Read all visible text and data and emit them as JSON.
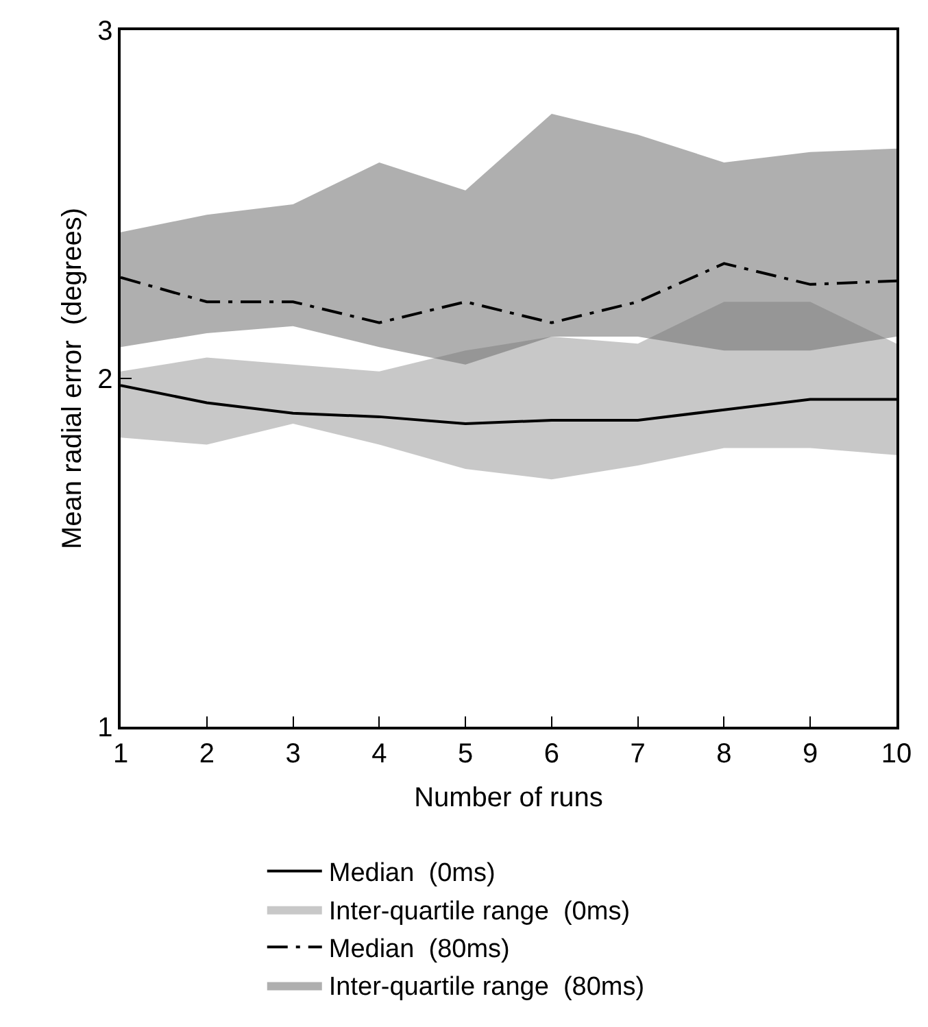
{
  "chart_data": {
    "type": "line",
    "xlabel": "Number of runs",
    "ylabel": "Mean radial error  (degrees)",
    "x": [
      1,
      2,
      3,
      4,
      5,
      6,
      7,
      8,
      9,
      10
    ],
    "xlim": [
      1,
      10
    ],
    "xticks": [
      1,
      2,
      3,
      4,
      5,
      6,
      7,
      8,
      9,
      10
    ],
    "ylim": [
      1,
      3
    ],
    "yticks": [
      1,
      2,
      3
    ],
    "grid": false,
    "legend": "bottom",
    "marker": "none",
    "series": [
      {
        "name": "Median  (0ms)",
        "color": "#000000",
        "line_style": "solid",
        "values": [
          1.98,
          1.93,
          1.9,
          1.89,
          1.87,
          1.88,
          1.88,
          1.91,
          1.94,
          1.94
        ]
      },
      {
        "name": "Inter-quartile range  (0ms)",
        "type": "area",
        "color": "#9a9a9a",
        "values": [
          null,
          null,
          null,
          null,
          null,
          null,
          null,
          null,
          null,
          null
        ],
        "lower": [
          1.83,
          1.81,
          1.87,
          1.81,
          1.74,
          1.71,
          1.75,
          1.8,
          1.8,
          1.78
        ],
        "upper": [
          2.02,
          2.06,
          2.04,
          2.02,
          2.08,
          2.12,
          2.1,
          2.22,
          2.22,
          2.1
        ]
      },
      {
        "name": "Median  (80ms)",
        "color": "#000000",
        "line_style": "dashed",
        "values": [
          2.29,
          2.22,
          2.22,
          2.16,
          2.22,
          2.16,
          2.22,
          2.33,
          2.27,
          2.28
        ]
      },
      {
        "name": "Inter-quartile range  (80ms)",
        "type": "area",
        "color": "#6e6e6e",
        "values": [
          null,
          null,
          null,
          null,
          null,
          null,
          null,
          null,
          null,
          null
        ],
        "lower": [
          2.09,
          2.13,
          2.15,
          2.09,
          2.04,
          2.12,
          2.12,
          2.08,
          2.08,
          2.12
        ],
        "upper": [
          2.42,
          2.47,
          2.5,
          2.62,
          2.54,
          2.76,
          2.7,
          2.62,
          2.65,
          2.66
        ]
      }
    ]
  }
}
